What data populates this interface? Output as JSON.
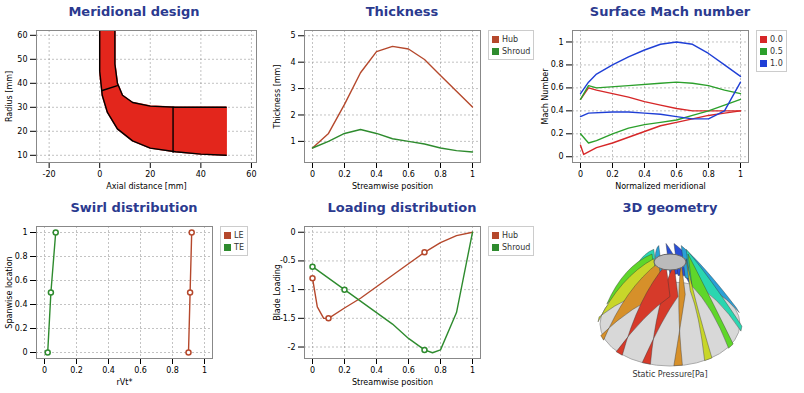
{
  "chart_data": [
    {
      "type": "mesh",
      "title": "Meridional design",
      "x_label": "Axial distance [mm]",
      "y_label": "Radius [mm]",
      "xlim": [
        -25,
        62
      ],
      "ylim": [
        7,
        62
      ],
      "xticks": [
        -20,
        0,
        20,
        40,
        60
      ],
      "yticks": [
        10,
        20,
        30,
        40,
        50,
        60
      ],
      "grid": true,
      "color": "#e3261c",
      "series": [
        {
          "color": "#000000",
          "x": [
            0,
            0,
            1,
            3,
            7,
            13,
            20,
            30,
            40,
            50
          ],
          "values": [
            62,
            45,
            35,
            28,
            21,
            16,
            13,
            11.5,
            10.5,
            10
          ]
        },
        {
          "color": "#000000",
          "x": [
            6,
            6,
            7,
            9,
            13,
            20,
            30,
            50
          ],
          "values": [
            62,
            48,
            40,
            35,
            32,
            30.5,
            30,
            30
          ]
        },
        {
          "color": "#000000",
          "x": [
            1,
            7
          ],
          "values": [
            37,
            39
          ]
        },
        {
          "color": "#000000",
          "x": [
            29,
            29
          ],
          "values": [
            11.3,
            30
          ]
        }
      ]
    },
    {
      "type": "line",
      "title": "Thickness",
      "x_label": "Streamwise position",
      "y_label": "Thickness [mm]",
      "xlim": [
        -0.05,
        1.05
      ],
      "ylim": [
        0.2,
        5.2
      ],
      "xticks": [
        0,
        0.2,
        0.4,
        0.6,
        0.8,
        1
      ],
      "yticks": [
        1,
        2,
        3,
        4,
        5
      ],
      "grid": true,
      "legend": "right",
      "series": [
        {
          "name": "Hub",
          "color": "#b5482c",
          "x": [
            0,
            0.1,
            0.2,
            0.3,
            0.4,
            0.5,
            0.6,
            0.7,
            0.8,
            0.9,
            1
          ],
          "values": [
            0.75,
            1.3,
            2.4,
            3.6,
            4.4,
            4.6,
            4.5,
            4.1,
            3.5,
            2.9,
            2.3
          ]
        },
        {
          "name": "Shroud",
          "color": "#2e8b2e",
          "x": [
            0,
            0.1,
            0.2,
            0.3,
            0.4,
            0.5,
            0.6,
            0.7,
            0.8,
            0.9,
            1
          ],
          "values": [
            0.75,
            1.0,
            1.3,
            1.45,
            1.3,
            1.1,
            1.0,
            0.9,
            0.75,
            0.65,
            0.6
          ]
        }
      ]
    },
    {
      "type": "line",
      "title": "Surface Mach number",
      "x_label": "Normalized meridional",
      "y_label": "Mach Number",
      "xlim": [
        -0.05,
        1.05
      ],
      "ylim": [
        -0.05,
        1.1
      ],
      "xticks": [
        0,
        0.2,
        0.4,
        0.6,
        0.8,
        1
      ],
      "yticks": [
        0,
        0.2,
        0.4,
        0.6,
        0.8,
        1
      ],
      "grid": true,
      "legend": "right",
      "series": [
        {
          "name": "0.0",
          "color": "#d62728",
          "x": [
            0,
            0.05,
            0.1,
            0.2,
            0.3,
            0.4,
            0.5,
            0.6,
            0.7,
            0.8,
            0.9,
            1
          ],
          "values": [
            0.5,
            0.6,
            0.58,
            0.55,
            0.52,
            0.48,
            0.45,
            0.42,
            0.4,
            0.4,
            0.4,
            0.4
          ]
        },
        {
          "name": "0.0",
          "color": "#d62728",
          "x": [
            0,
            0.02,
            0.1,
            0.2,
            0.3,
            0.4,
            0.5,
            0.6,
            0.7,
            0.8,
            0.9,
            1
          ],
          "values": [
            0.1,
            0.02,
            0.08,
            0.12,
            0.17,
            0.22,
            0.27,
            0.3,
            0.33,
            0.36,
            0.38,
            0.4
          ]
        },
        {
          "name": "0.5",
          "color": "#2ca02c",
          "x": [
            0,
            0.05,
            0.1,
            0.3,
            0.5,
            0.6,
            0.7,
            0.8,
            0.9,
            1
          ],
          "values": [
            0.5,
            0.62,
            0.6,
            0.62,
            0.64,
            0.65,
            0.64,
            0.62,
            0.58,
            0.55
          ]
        },
        {
          "name": "0.5",
          "color": "#2ca02c",
          "x": [
            0,
            0.05,
            0.1,
            0.2,
            0.3,
            0.4,
            0.5,
            0.6,
            0.7,
            0.8,
            0.9,
            1
          ],
          "values": [
            0.2,
            0.12,
            0.14,
            0.2,
            0.25,
            0.28,
            0.3,
            0.32,
            0.36,
            0.4,
            0.45,
            0.5
          ]
        },
        {
          "name": "1.0",
          "color": "#1f3fd6",
          "x": [
            0,
            0.05,
            0.1,
            0.2,
            0.3,
            0.4,
            0.5,
            0.6,
            0.7,
            0.8,
            0.9,
            1
          ],
          "values": [
            0.55,
            0.65,
            0.72,
            0.8,
            0.87,
            0.93,
            0.98,
            1.0,
            0.98,
            0.9,
            0.8,
            0.7
          ]
        },
        {
          "name": "1.0",
          "color": "#1f3fd6",
          "x": [
            0,
            0.05,
            0.2,
            0.3,
            0.4,
            0.5,
            0.6,
            0.7,
            0.8,
            0.9,
            1
          ],
          "values": [
            0.35,
            0.38,
            0.39,
            0.39,
            0.38,
            0.37,
            0.35,
            0.33,
            0.33,
            0.4,
            0.65
          ]
        }
      ]
    },
    {
      "type": "line",
      "title": "Swirl distribution",
      "x_label": "rVt*",
      "y_label": "Spanwise location",
      "xlim": [
        -0.05,
        1.05
      ],
      "ylim": [
        -0.05,
        1.05
      ],
      "xticks": [
        0,
        0.2,
        0.4,
        0.6,
        0.8,
        1
      ],
      "yticks": [
        0,
        0.2,
        0.4,
        0.6,
        0.8,
        1
      ],
      "grid": true,
      "legend": "right",
      "series": [
        {
          "name": "LE",
          "color": "#b5482c",
          "marker": "circle",
          "x": [
            0.9,
            0.91,
            0.92
          ],
          "values": [
            0,
            0.5,
            1
          ]
        },
        {
          "name": "TE",
          "color": "#2e8b2e",
          "marker": "circle",
          "x": [
            0.02,
            0.04,
            0.07
          ],
          "values": [
            0,
            0.5,
            1
          ]
        }
      ]
    },
    {
      "type": "line",
      "title": "Loading distribution",
      "x_label": "Streamwise position",
      "y_label": "Blade Loading",
      "xlim": [
        -0.05,
        1.05
      ],
      "ylim": [
        -2.2,
        0.1
      ],
      "xticks": [
        0,
        0.2,
        0.4,
        0.6,
        0.8,
        1
      ],
      "yticks": [
        -2,
        -1.5,
        -1,
        -0.5,
        0
      ],
      "grid": true,
      "legend": "right",
      "series": [
        {
          "name": "Hub",
          "color": "#b5482c",
          "marker": "circle",
          "x": [
            0,
            0.03,
            0.07,
            0.1,
            0.2,
            0.3,
            0.4,
            0.5,
            0.6,
            0.7,
            0.8,
            0.9,
            1
          ],
          "values": [
            -0.8,
            -1.3,
            -1.5,
            -1.5,
            -1.32,
            -1.15,
            -0.95,
            -0.75,
            -0.55,
            -0.35,
            -0.18,
            -0.06,
            0
          ],
          "control_x": [
            0,
            0.1,
            0.7
          ],
          "control_values": [
            -0.8,
            -1.5,
            -0.35
          ]
        },
        {
          "name": "Shroud",
          "color": "#2e8b2e",
          "marker": "circle",
          "x": [
            0,
            0.1,
            0.2,
            0.3,
            0.4,
            0.5,
            0.6,
            0.7,
            0.75,
            0.8,
            0.9,
            1
          ],
          "values": [
            -0.6,
            -0.8,
            -1.0,
            -1.2,
            -1.4,
            -1.6,
            -1.85,
            -2.05,
            -2.1,
            -2.05,
            -1.4,
            0
          ],
          "control_x": [
            0,
            0.2,
            0.7
          ],
          "control_values": [
            -0.6,
            -1.0,
            -2.05
          ]
        }
      ]
    },
    {
      "type": "render",
      "title": "3D geometry",
      "annotations": [
        "Static Pressure[Pa]"
      ]
    }
  ]
}
